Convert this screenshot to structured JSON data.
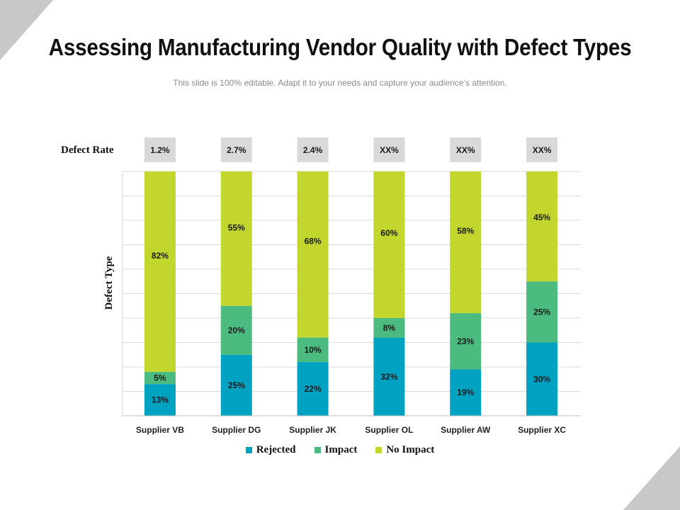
{
  "slide": {
    "title": "Assessing Manufacturing Vendor Quality with Defect Types",
    "subtitle": "This slide is 100% editable. Adapt it to your needs and capture your audience’s attention."
  },
  "colors": {
    "rejected": "#00A2C2",
    "impact": "#4CBB7F",
    "no_impact": "#C2D62E",
    "rate_box": "#D9D9D9",
    "grid": "#D9D9D9",
    "corner": "#C8C8C8"
  },
  "chart_data": {
    "type": "bar",
    "stacked": true,
    "categories": [
      "Supplier VB",
      "Supplier DG",
      "Supplier JK",
      "Supplier OL",
      "Supplier AW",
      "Supplier XC"
    ],
    "series": [
      {
        "name": "Rejected",
        "values": [
          13,
          25,
          22,
          32,
          19,
          30
        ],
        "labels": [
          "13%",
          "25%",
          "22%",
          "32%",
          "19%",
          "30%"
        ]
      },
      {
        "name": "Impact",
        "values": [
          5,
          20,
          10,
          8,
          23,
          25
        ],
        "labels": [
          "5%",
          "20%",
          "10%",
          "8%",
          "23%",
          "25%"
        ]
      },
      {
        "name": "No Impact",
        "values": [
          82,
          55,
          68,
          60,
          58,
          45
        ],
        "labels": [
          "82%",
          "55%",
          "68%",
          "60%",
          "58%",
          "45%"
        ]
      }
    ],
    "defect_rate_label": "Defect Rate",
    "defect_rates": [
      "1.2%",
      "2.7%",
      "2.4%",
      "XX%",
      "XX%",
      "XX%"
    ],
    "ylabel": "Defect Type",
    "xlabel": "",
    "ylim": [
      0,
      100
    ],
    "grid": true,
    "legend": "bottom"
  }
}
